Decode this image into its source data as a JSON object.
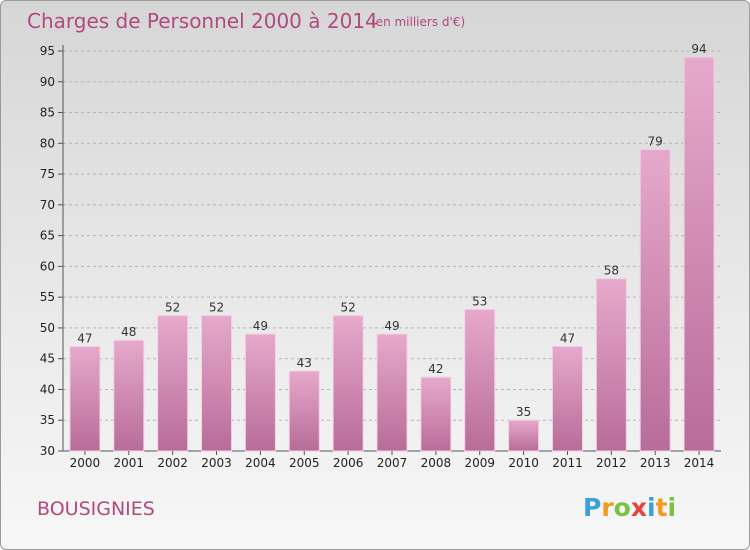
{
  "chart_data": {
    "type": "bar",
    "title": "Charges de Personnel 2000 à 2014",
    "subtitle": "(en milliers d'€)",
    "categories": [
      "2000",
      "2001",
      "2002",
      "2003",
      "2004",
      "2005",
      "2006",
      "2007",
      "2008",
      "2009",
      "2010",
      "2011",
      "2012",
      "2013",
      "2014"
    ],
    "values": [
      47,
      48,
      52,
      52,
      49,
      43,
      52,
      49,
      42,
      53,
      35,
      47,
      58,
      79,
      94
    ],
    "ylim": [
      30,
      95
    ],
    "yticks": [
      30,
      35,
      40,
      45,
      50,
      55,
      60,
      65,
      70,
      75,
      80,
      85,
      90,
      95
    ],
    "grid": "horizontal dashed",
    "colors": {
      "bar": "#d98fb8",
      "bar_light": "#e4a7c9",
      "bar_dark": "#c4709e",
      "text_accent": "#b04a7f"
    }
  },
  "place_name": "BOUSIGNIES",
  "logo": {
    "letters": [
      "P",
      "r",
      "o",
      "x",
      "i",
      "t",
      "i"
    ],
    "colors": [
      "#3b9fd8",
      "#f29b1d",
      "#7cc242",
      "#e8423c",
      "#3b9fd8",
      "#f29b1d",
      "#7cc242"
    ]
  }
}
